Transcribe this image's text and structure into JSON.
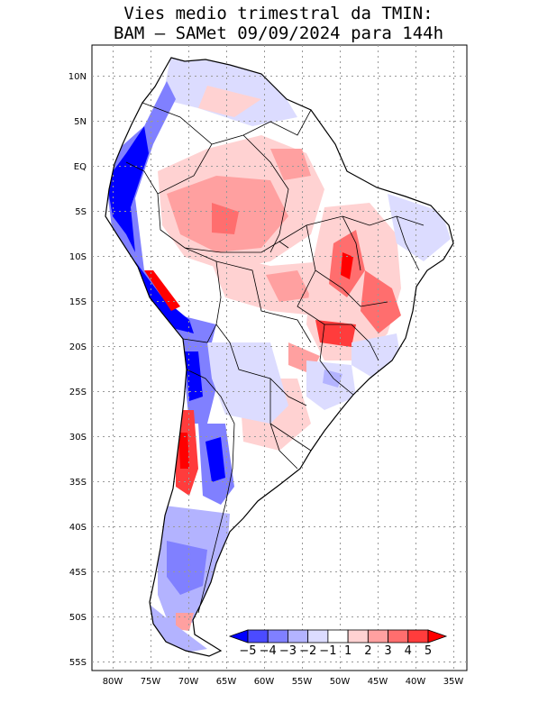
{
  "title": {
    "line1": "Vies medio trimestral da TMIN:",
    "line2": "BAM – SAMet 09/09/2024  para 144h"
  },
  "map": {
    "lat_labels": [
      "10N",
      "5N",
      "EQ",
      "5S",
      "10S",
      "15S",
      "20S",
      "25S",
      "30S",
      "35S",
      "40S",
      "45S",
      "50S",
      "55S"
    ],
    "lon_labels": [
      "80W",
      "75W",
      "70W",
      "65W",
      "60W",
      "55W",
      "50W",
      "45W",
      "40W",
      "35W"
    ],
    "grid": "dotted",
    "region": "South America"
  },
  "colorbar": {
    "labels": [
      "-5",
      "-4",
      "-3",
      "-2",
      "-1",
      "1",
      "2",
      "3",
      "4",
      "5"
    ],
    "colors": [
      "#0000ff",
      "#4b4bff",
      "#8080ff",
      "#b3b3ff",
      "#dcdcff",
      "#ffffff",
      "#ffd2d2",
      "#ffa0a0",
      "#ff6e6e",
      "#ff3c3c",
      "#ff0000"
    ]
  },
  "colors": {
    "land_outline": "#000000",
    "grid": "#999999"
  }
}
